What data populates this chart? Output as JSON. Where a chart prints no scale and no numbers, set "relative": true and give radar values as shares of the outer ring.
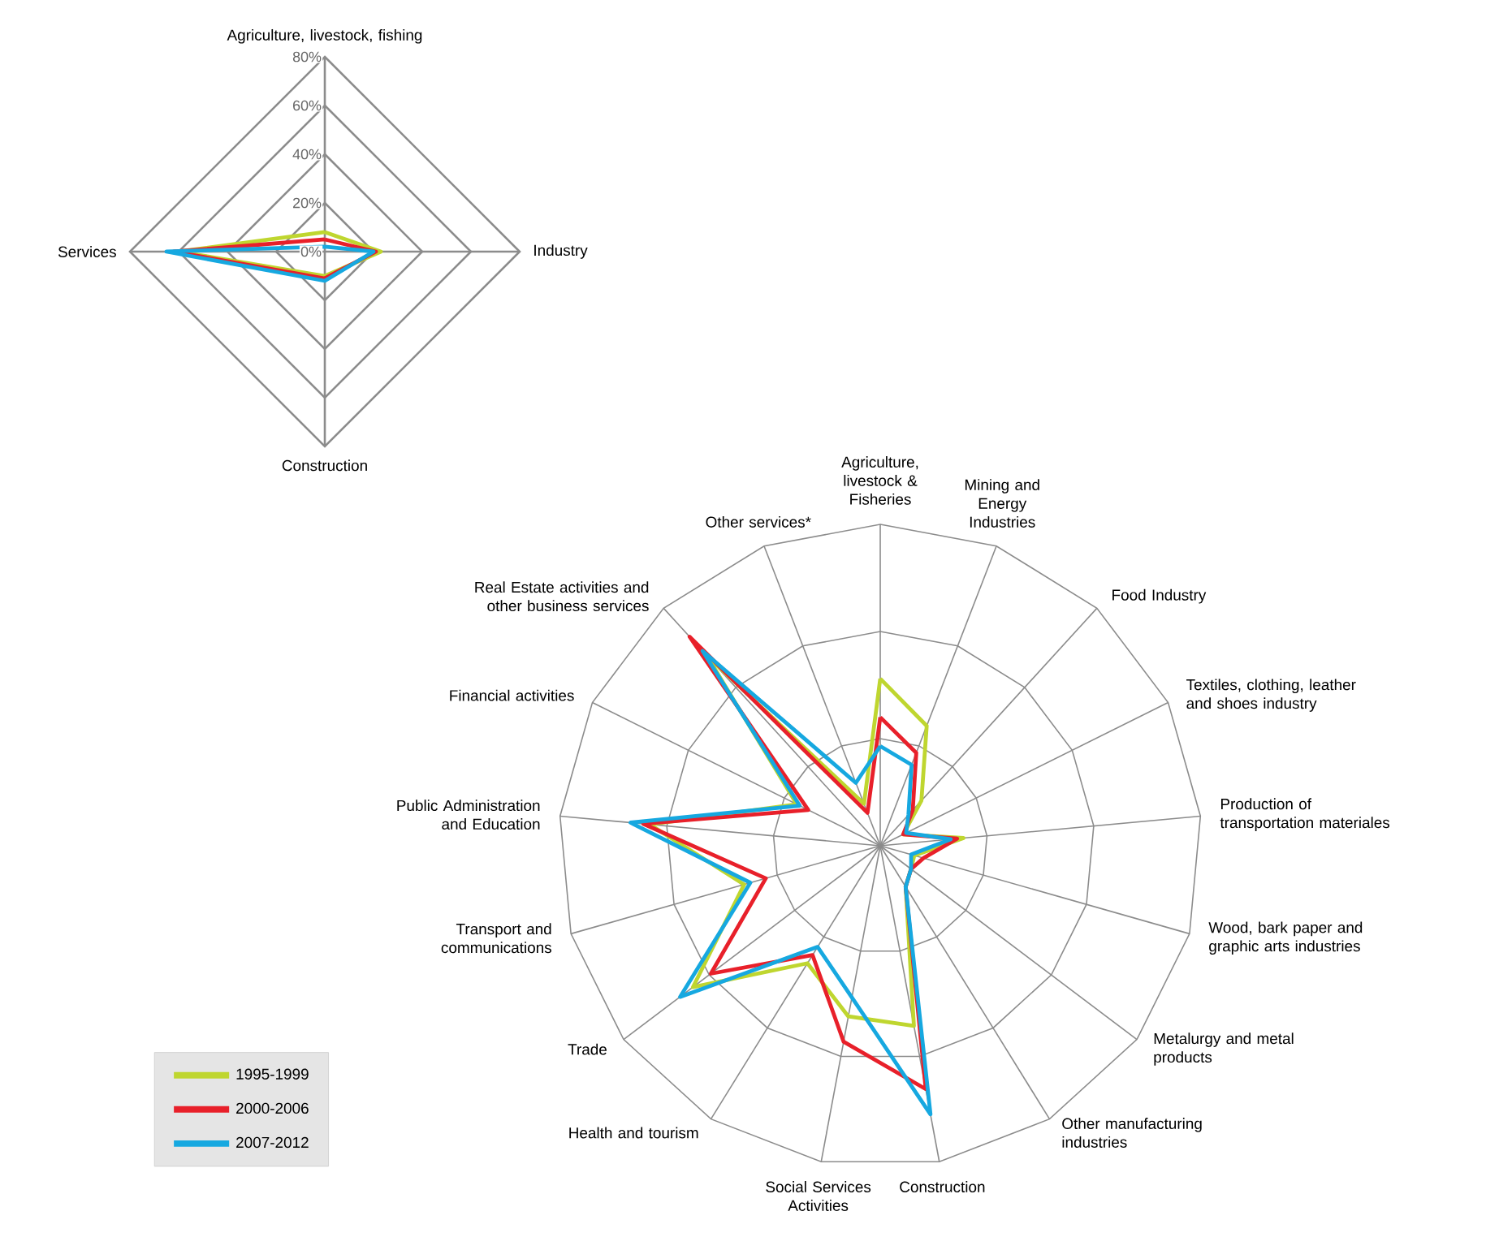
{
  "chart_data": [
    {
      "type": "radar",
      "categories": [
        "Agriculture, livestock, fishing",
        "Industry",
        "Construction",
        "Services"
      ],
      "ylim": [
        0,
        80
      ],
      "yticks": [
        {
          "value": 0,
          "label": "0%"
        },
        {
          "value": 20,
          "label": "20%"
        },
        {
          "value": 40,
          "label": "40%"
        },
        {
          "value": 60,
          "label": "60%"
        },
        {
          "value": 80,
          "label": "80%"
        }
      ],
      "grid": true,
      "legend": false,
      "marker": "none",
      "line_style": "solid",
      "series": [
        {
          "color": "#bfd62f",
          "values": [
            8,
            23,
            10,
            60
          ]
        },
        {
          "color": "#e8202a",
          "values": [
            5,
            21,
            11,
            62
          ]
        },
        {
          "color": "#16a8e0",
          "values": [
            2,
            20,
            12,
            65
          ]
        }
      ]
    },
    {
      "type": "radar",
      "relative": true,
      "categories": [
        "Agriculture, livestock & Fisheries",
        "Mining and Energy Industries",
        "Food Industry",
        "Textiles, clothing, leather and shoes industry",
        "Production of transportation materiales",
        "Wood, bark paper and graphic arts industries",
        "Metalurgy and metal products",
        "Other manufacturing industries",
        "Construction",
        "Social Services Activities",
        "Health and tourism",
        "Trade",
        "Transport and communications",
        "Public Administration and Education",
        "Financial activities",
        "Real Estate activities and other business services",
        "Other services*"
      ],
      "grid": true,
      "legend": "bottom left",
      "marker": "none",
      "line_style": "solid",
      "series": [
        {
          "name": "1995-1999",
          "color": "#bfd62f",
          "values": [
            0.52,
            0.4,
            0.19,
            0.08,
            0.26,
            0.11,
            0.12,
            0.15,
            0.57,
            0.54,
            0.43,
            0.73,
            0.44,
            0.72,
            0.29,
            0.8,
            0.14
          ]
        },
        {
          "name": "2000-2006",
          "color": "#e8202a",
          "values": [
            0.4,
            0.31,
            0.15,
            0.08,
            0.24,
            0.14,
            0.12,
            0.15,
            0.77,
            0.62,
            0.4,
            0.66,
            0.37,
            0.74,
            0.25,
            0.88,
            0.11
          ]
        },
        {
          "name": "2007-2012",
          "color": "#16a8e0",
          "values": [
            0.31,
            0.27,
            0.13,
            0.09,
            0.22,
            0.1,
            0.12,
            0.15,
            0.85,
            0.48,
            0.37,
            0.78,
            0.42,
            0.78,
            0.28,
            0.82,
            0.21
          ]
        }
      ]
    }
  ]
}
